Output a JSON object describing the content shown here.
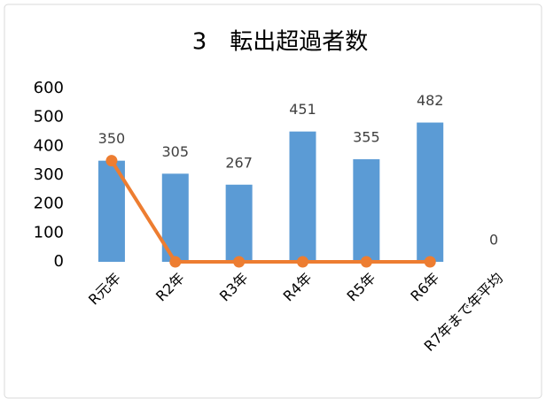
{
  "chart_data": {
    "type": "bar_line",
    "title": "3　転出超過者数",
    "categories": [
      "R元年",
      "R2年",
      "R3年",
      "R4年",
      "R5年",
      "R6年",
      "R7年まで年平均"
    ],
    "series": [
      {
        "type": "bar",
        "color": "#5b9bd5",
        "values": [
          350,
          305,
          267,
          451,
          355,
          482,
          0
        ]
      },
      {
        "type": "line",
        "color": "#ed7d31",
        "values": [
          350,
          0,
          0,
          0,
          0,
          0,
          null
        ]
      }
    ],
    "ylim": [
      0,
      600
    ],
    "yticks": [
      0,
      100,
      200,
      300,
      400,
      500,
      600
    ],
    "grid": false
  }
}
